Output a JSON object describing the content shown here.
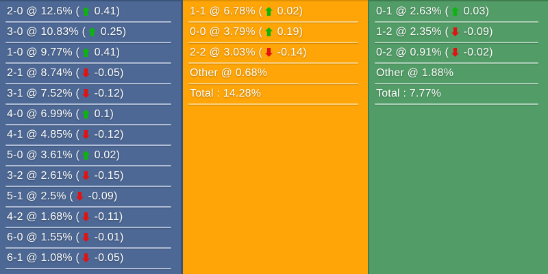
{
  "panels": [
    {
      "name": "home-scores",
      "bg_color": "#4D6894",
      "separator_color": "#AFBDD6",
      "border_color": "#3A5379",
      "rows": [
        {
          "text_before": "2-0 @ 12.6% (",
          "dir": "up",
          "text_after": " 0.41)"
        },
        {
          "text_before": "3-0 @ 10.83% (",
          "dir": "up",
          "text_after": " 0.25)"
        },
        {
          "text_before": "1-0 @ 9.77% (",
          "dir": "up",
          "text_after": " 0.41)"
        },
        {
          "text_before": "2-1 @ 8.74% (",
          "dir": "down",
          "text_after": " -0.05)"
        },
        {
          "text_before": "3-1 @ 7.52% (",
          "dir": "down",
          "text_after": " -0.12)"
        },
        {
          "text_before": "4-0 @ 6.99% (",
          "dir": "up",
          "text_after": " 0.1)"
        },
        {
          "text_before": "4-1 @ 4.85% (",
          "dir": "down",
          "text_after": " -0.12)"
        },
        {
          "text_before": "5-0 @ 3.61% (",
          "dir": "up",
          "text_after": " 0.02)"
        },
        {
          "text_before": "3-2 @ 2.61% (",
          "dir": "down",
          "text_after": " -0.15)"
        },
        {
          "text_before": "5-1 @ 2.5% (",
          "dir": "down",
          "text_after": " -0.09)"
        },
        {
          "text_before": "4-2 @ 1.68% (",
          "dir": "down",
          "text_after": " -0.11)"
        },
        {
          "text_before": "6-0 @ 1.55% (",
          "dir": "down",
          "text_after": " -0.01)"
        },
        {
          "text_before": "6-1 @ 1.08% (",
          "dir": "down",
          "text_after": " -0.05)"
        }
      ]
    },
    {
      "name": "draw-scores",
      "bg_color": "#FFA507",
      "separator_color": "#FBD07E",
      "border_color": null,
      "rows": [
        {
          "text_before": "1-1 @ 6.78% (",
          "dir": "up",
          "text_after": " 0.02)"
        },
        {
          "text_before": "0-0 @ 3.79% (",
          "dir": "up",
          "text_after": " 0.19)"
        },
        {
          "text_before": "2-2 @ 3.03% (",
          "dir": "down",
          "text_after": " -0.14)"
        },
        {
          "text_before": "Other @ 0.68%",
          "dir": null,
          "text_after": ""
        },
        {
          "text_before": "Total : 14.28%",
          "dir": null,
          "text_after": ""
        }
      ]
    },
    {
      "name": "away-scores",
      "bg_color": "#529D67",
      "separator_color": "#ACD0B8",
      "border_color": "#3E7C50",
      "rows": [
        {
          "text_before": "0-1 @ 2.63% (",
          "dir": "up",
          "text_after": " 0.03)"
        },
        {
          "text_before": "1-2 @ 2.35% (",
          "dir": "down",
          "text_after": " -0.09)"
        },
        {
          "text_before": "0-2 @ 0.91% (",
          "dir": "down",
          "text_after": " -0.02)"
        },
        {
          "text_before": "Other @ 1.88%",
          "dir": null,
          "text_after": ""
        },
        {
          "text_before": "Total : 7.77%",
          "dir": null,
          "text_after": ""
        }
      ]
    }
  ],
  "colors": {
    "text": "#FFFFFF",
    "up_arrow": "#0CB50C",
    "down_arrow": "#E01313"
  }
}
